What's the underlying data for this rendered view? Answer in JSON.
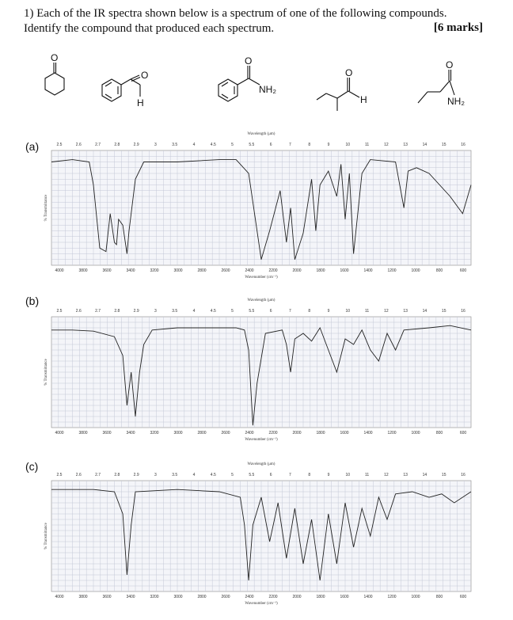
{
  "question": {
    "line1": "1) Each of the IR spectra shown below is a spectrum of one of the following compounds.",
    "line2": "Identify the compound that produced each spectrum.",
    "marks": "[6 marks]"
  },
  "structures": {
    "atom_O": "O",
    "atom_H": "H",
    "group_NH2": "NH₂"
  },
  "spectra": [
    {
      "label": "(a)"
    },
    {
      "label": "(b)"
    },
    {
      "label": "(c)"
    }
  ],
  "axes": {
    "wavelength_title": "Wavelength (μm)",
    "wavenumber_title": "Wavenumber (cm⁻¹)",
    "y_title": "% Transmittance",
    "wavelength_ticks": [
      "2.5",
      "2.6",
      "2.7",
      "2.8",
      "2.9",
      "3",
      "3.5",
      "4",
      "4.5",
      "5",
      "5.5",
      "6",
      "7",
      "8",
      "9",
      "10",
      "11",
      "12",
      "13",
      "14",
      "15",
      "16"
    ],
    "wavenumber_ticks": [
      "4000",
      "3800",
      "3600",
      "3400",
      "3200",
      "3000",
      "2800",
      "2600",
      "2400",
      "2200",
      "2000",
      "1800",
      "1600",
      "1400",
      "1200",
      "1000",
      "800",
      "600"
    ]
  },
  "colors": {
    "grid_bg": "#f4f5f9",
    "grid_line": "#c3c8d6",
    "trace": "#222222"
  }
}
